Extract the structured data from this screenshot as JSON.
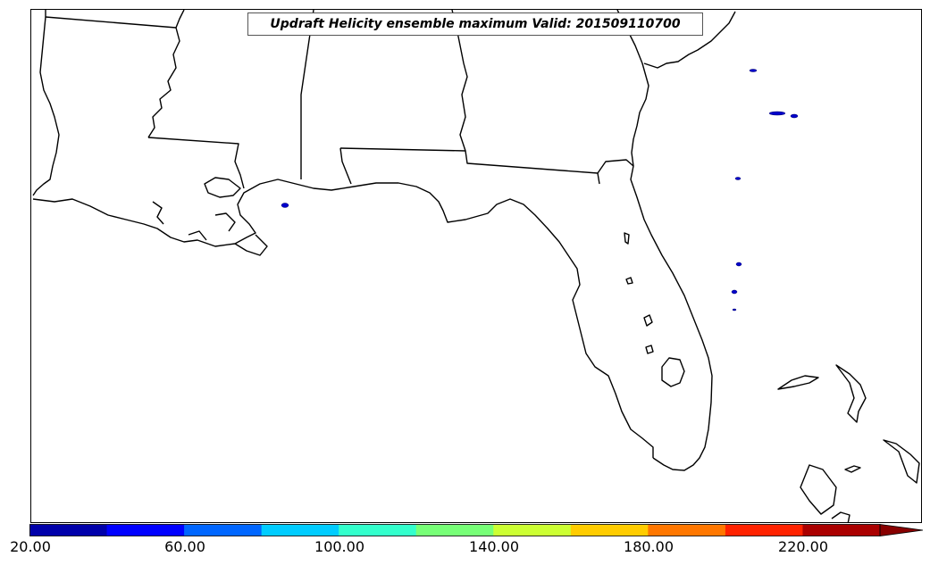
{
  "map": {
    "title": "Updraft Helicity ensemble maximum Valid: 201509110700",
    "coastline_color": "#000000",
    "water_color": "#ffffff",
    "feature_color": "#0000cc"
  },
  "colorbar": {
    "colors": [
      "#0000aa",
      "#0000ff",
      "#0066ff",
      "#00ccff",
      "#33ffcc",
      "#77ff77",
      "#ccff33",
      "#ffcc00",
      "#ff7700",
      "#ff2200",
      "#aa0000"
    ],
    "extend_color": "#880000",
    "labels": [
      "20.00",
      "60.00",
      "100.00",
      "140.00",
      "180.00",
      "220.00"
    ]
  }
}
